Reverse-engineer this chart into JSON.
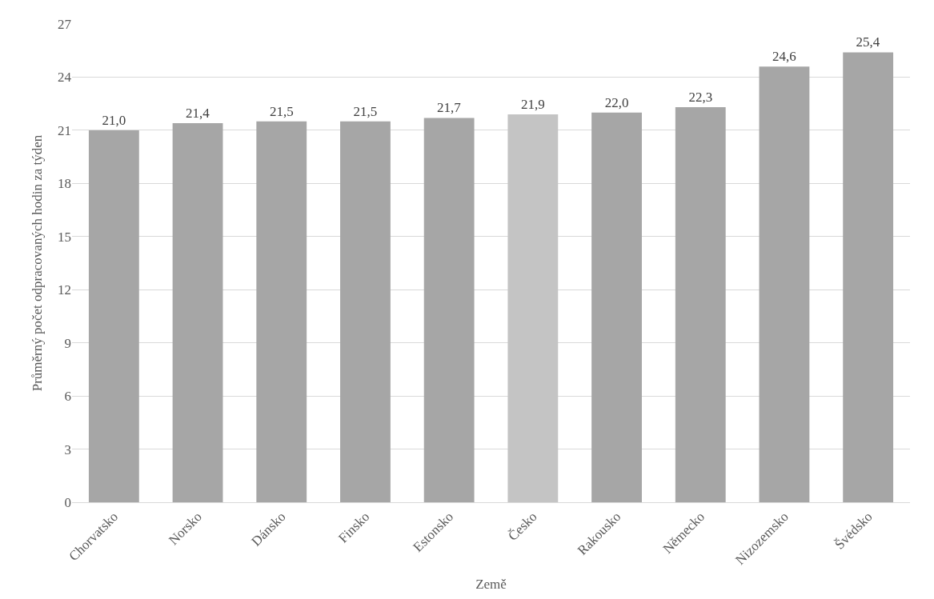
{
  "chart_data": {
    "type": "bar",
    "xlabel": "Země",
    "ylabel": "Průměrný počet odpracovaných hodin za týden",
    "categories": [
      "Chorvatsko",
      "Norsko",
      "Dánsko",
      "Finsko",
      "Estonsko",
      "Česko",
      "Rakousko",
      "Německo",
      "Nizozemsko",
      "Švédsko"
    ],
    "values": [
      21.0,
      21.4,
      21.5,
      21.5,
      21.7,
      21.9,
      22.0,
      22.3,
      24.6,
      25.4
    ],
    "value_labels": [
      "21,0",
      "21,4",
      "21,5",
      "21,5",
      "21,7",
      "21,9",
      "22,0",
      "22,3",
      "24,6",
      "25,4"
    ],
    "colors": [
      "#a6a6a6",
      "#a6a6a6",
      "#a6a6a6",
      "#a6a6a6",
      "#a6a6a6",
      "#c4c4c4",
      "#a6a6a6",
      "#a6a6a6",
      "#a6a6a6",
      "#a6a6a6"
    ],
    "ylim": [
      0,
      27
    ],
    "yticks": [
      0,
      3,
      6,
      9,
      12,
      15,
      18,
      21,
      24,
      27
    ],
    "grid": "y",
    "legend": false
  }
}
